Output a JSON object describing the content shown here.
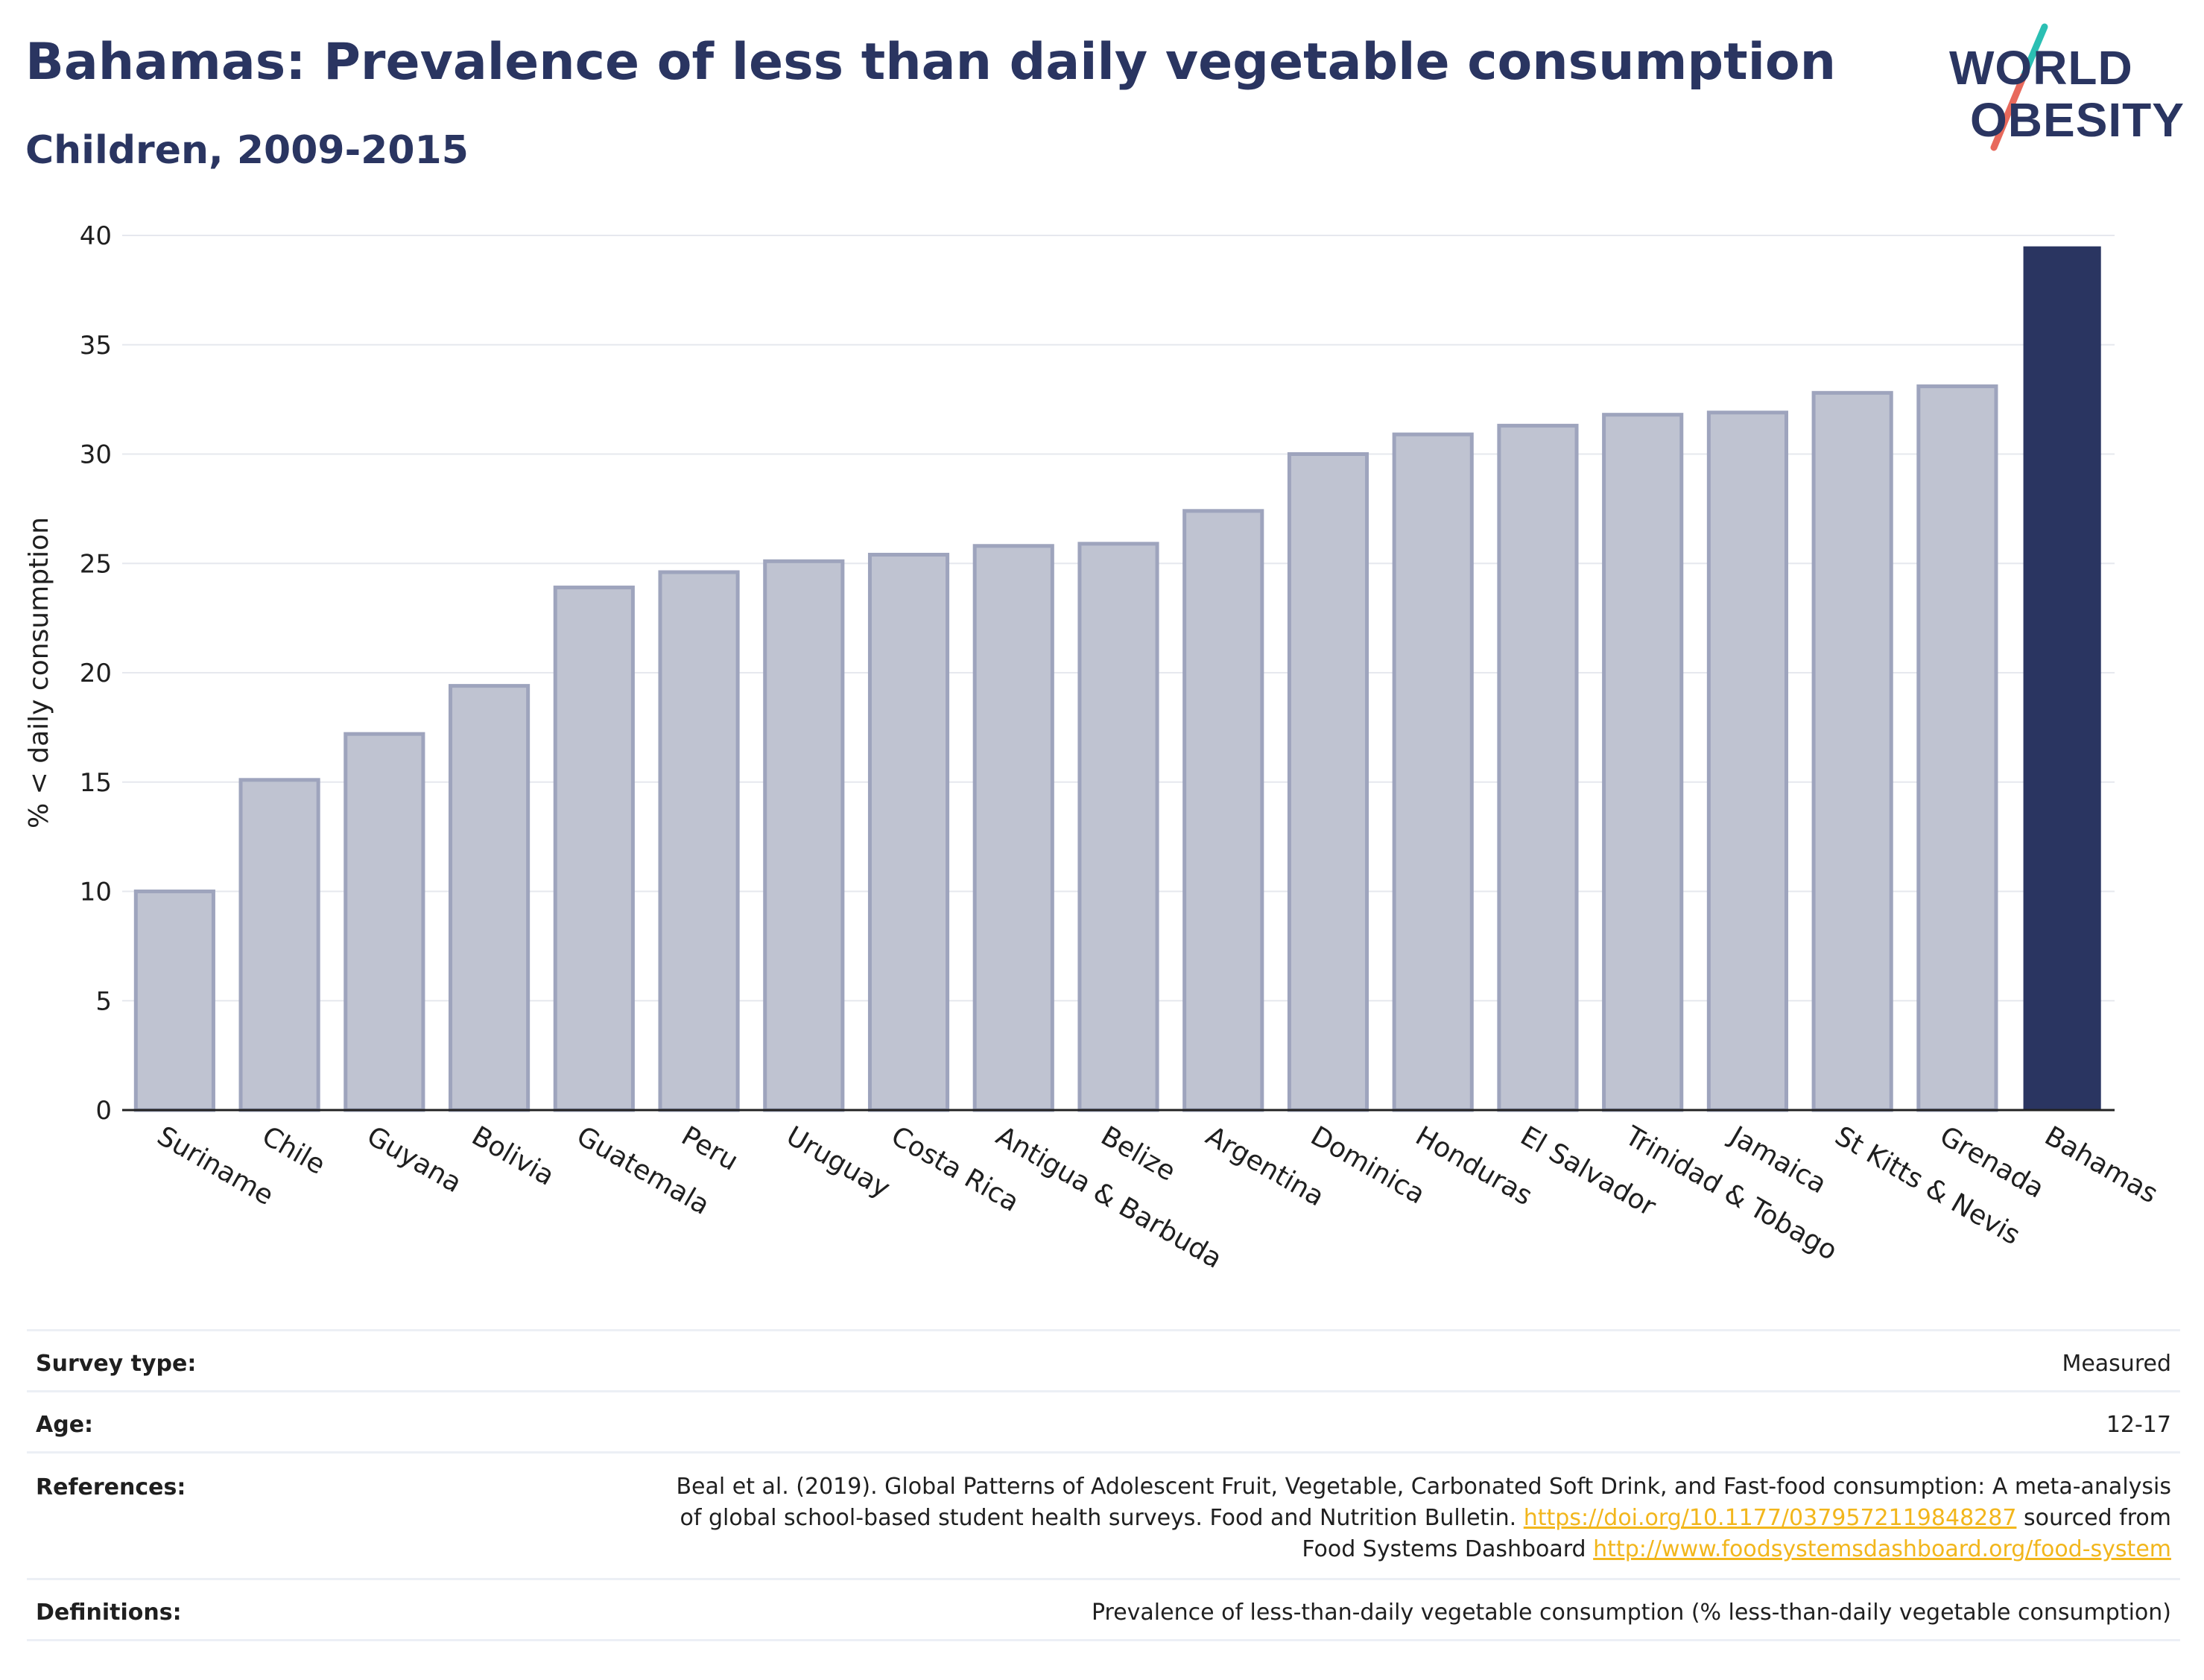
{
  "title": "Bahamas: Prevalence of less than daily vegetable consumption",
  "subtitle": "Children, 2009-2015",
  "logo": {
    "line1": "WORLD",
    "line2": "OBESITY",
    "slash_color_top": "#2bbfb3",
    "slash_color_bottom": "#e8695c"
  },
  "chart_data": {
    "type": "bar",
    "ylabel": "% < daily consumption",
    "xlabel": "",
    "ylim": [
      0,
      40
    ],
    "yticks": [
      0,
      5,
      10,
      15,
      20,
      25,
      30,
      35,
      40
    ],
    "grid": true,
    "highlight": "Bahamas",
    "colors": {
      "default_fill": "#bfc3d1",
      "default_stroke": "#9ea4bd",
      "highlight_fill": "#2a3561"
    },
    "categories": [
      "Suriname",
      "Chile",
      "Guyana",
      "Bolivia",
      "Guatemala",
      "Peru",
      "Uruguay",
      "Costa Rica",
      "Antigua & Barbuda",
      "Belize",
      "Argentina",
      "Dominica",
      "Honduras",
      "El Salvador",
      "Trinidad & Tobago",
      "Jamaica",
      "St Kitts & Nevis",
      "Grenada",
      "Bahamas"
    ],
    "values": [
      10.0,
      15.1,
      17.2,
      19.4,
      23.9,
      24.6,
      25.1,
      25.4,
      25.8,
      25.9,
      27.4,
      30.0,
      30.9,
      31.3,
      31.8,
      31.9,
      32.8,
      33.1,
      39.5
    ]
  },
  "meta": {
    "survey_type": {
      "label": "Survey type:",
      "value": "Measured"
    },
    "age": {
      "label": "Age:",
      "value": "12-17"
    },
    "references": {
      "label": "References:",
      "line1": "Beal et al. (2019). Global Patterns of Adolescent Fruit, Vegetable, Carbonated Soft Drink, and Fast-food consumption: A meta-analysis",
      "line2_text": "of global school-based student health surveys. Food and Nutrition Bulletin.",
      "line2_link": "https://doi.org/10.1177/0379572119848287",
      "line2_tail": "sourced from",
      "line3_text": "Food Systems Dashboard",
      "line3_link": "http://www.foodsystemsdashboard.org/food-system"
    },
    "definitions": {
      "label": "Definitions:",
      "value": "Prevalence of less-than-daily vegetable consumption (% less-than-daily vegetable consumption)"
    }
  }
}
